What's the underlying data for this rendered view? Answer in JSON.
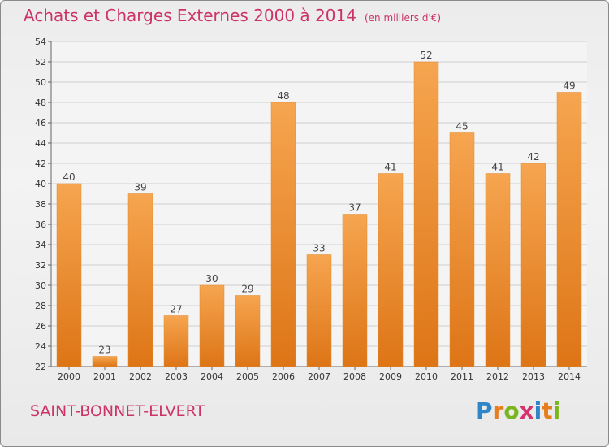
{
  "title": {
    "main": "Achats et Charges Externes 2000 à 2014",
    "unit": "(en milliers d'€)"
  },
  "commune": "SAINT-BONNET-ELVERT",
  "logo": {
    "text": "Proxiti",
    "letters": [
      {
        "char": "P",
        "color": "#2e86c9"
      },
      {
        "char": "r",
        "color": "#e87d1e"
      },
      {
        "char": "o",
        "color": "#7ab51d"
      },
      {
        "char": "x",
        "color": "#d6336c"
      },
      {
        "char": "i",
        "color": "#2e86c9"
      },
      {
        "char": "t",
        "color": "#e87d1e"
      },
      {
        "char": "i",
        "color": "#7ab51d"
      }
    ]
  },
  "colors": {
    "title": "#cc3366",
    "bar_light": "#f6a550",
    "bar_dark": "#dd7516",
    "grid": "#cfcfcf"
  },
  "chart_data": {
    "type": "bar",
    "categories": [
      "2000",
      "2001",
      "2002",
      "2003",
      "2004",
      "2005",
      "2006",
      "2007",
      "2008",
      "2009",
      "2010",
      "2011",
      "2012",
      "2013",
      "2014"
    ],
    "values": [
      40,
      23,
      39,
      27,
      30,
      29,
      48,
      33,
      37,
      41,
      52,
      45,
      41,
      42,
      49
    ],
    "ylim": [
      22,
      54
    ],
    "yticks": [
      22,
      24,
      26,
      28,
      30,
      32,
      34,
      36,
      38,
      40,
      42,
      44,
      46,
      48,
      50,
      52,
      54
    ],
    "grid": true,
    "xlabel": "",
    "ylabel": ""
  }
}
